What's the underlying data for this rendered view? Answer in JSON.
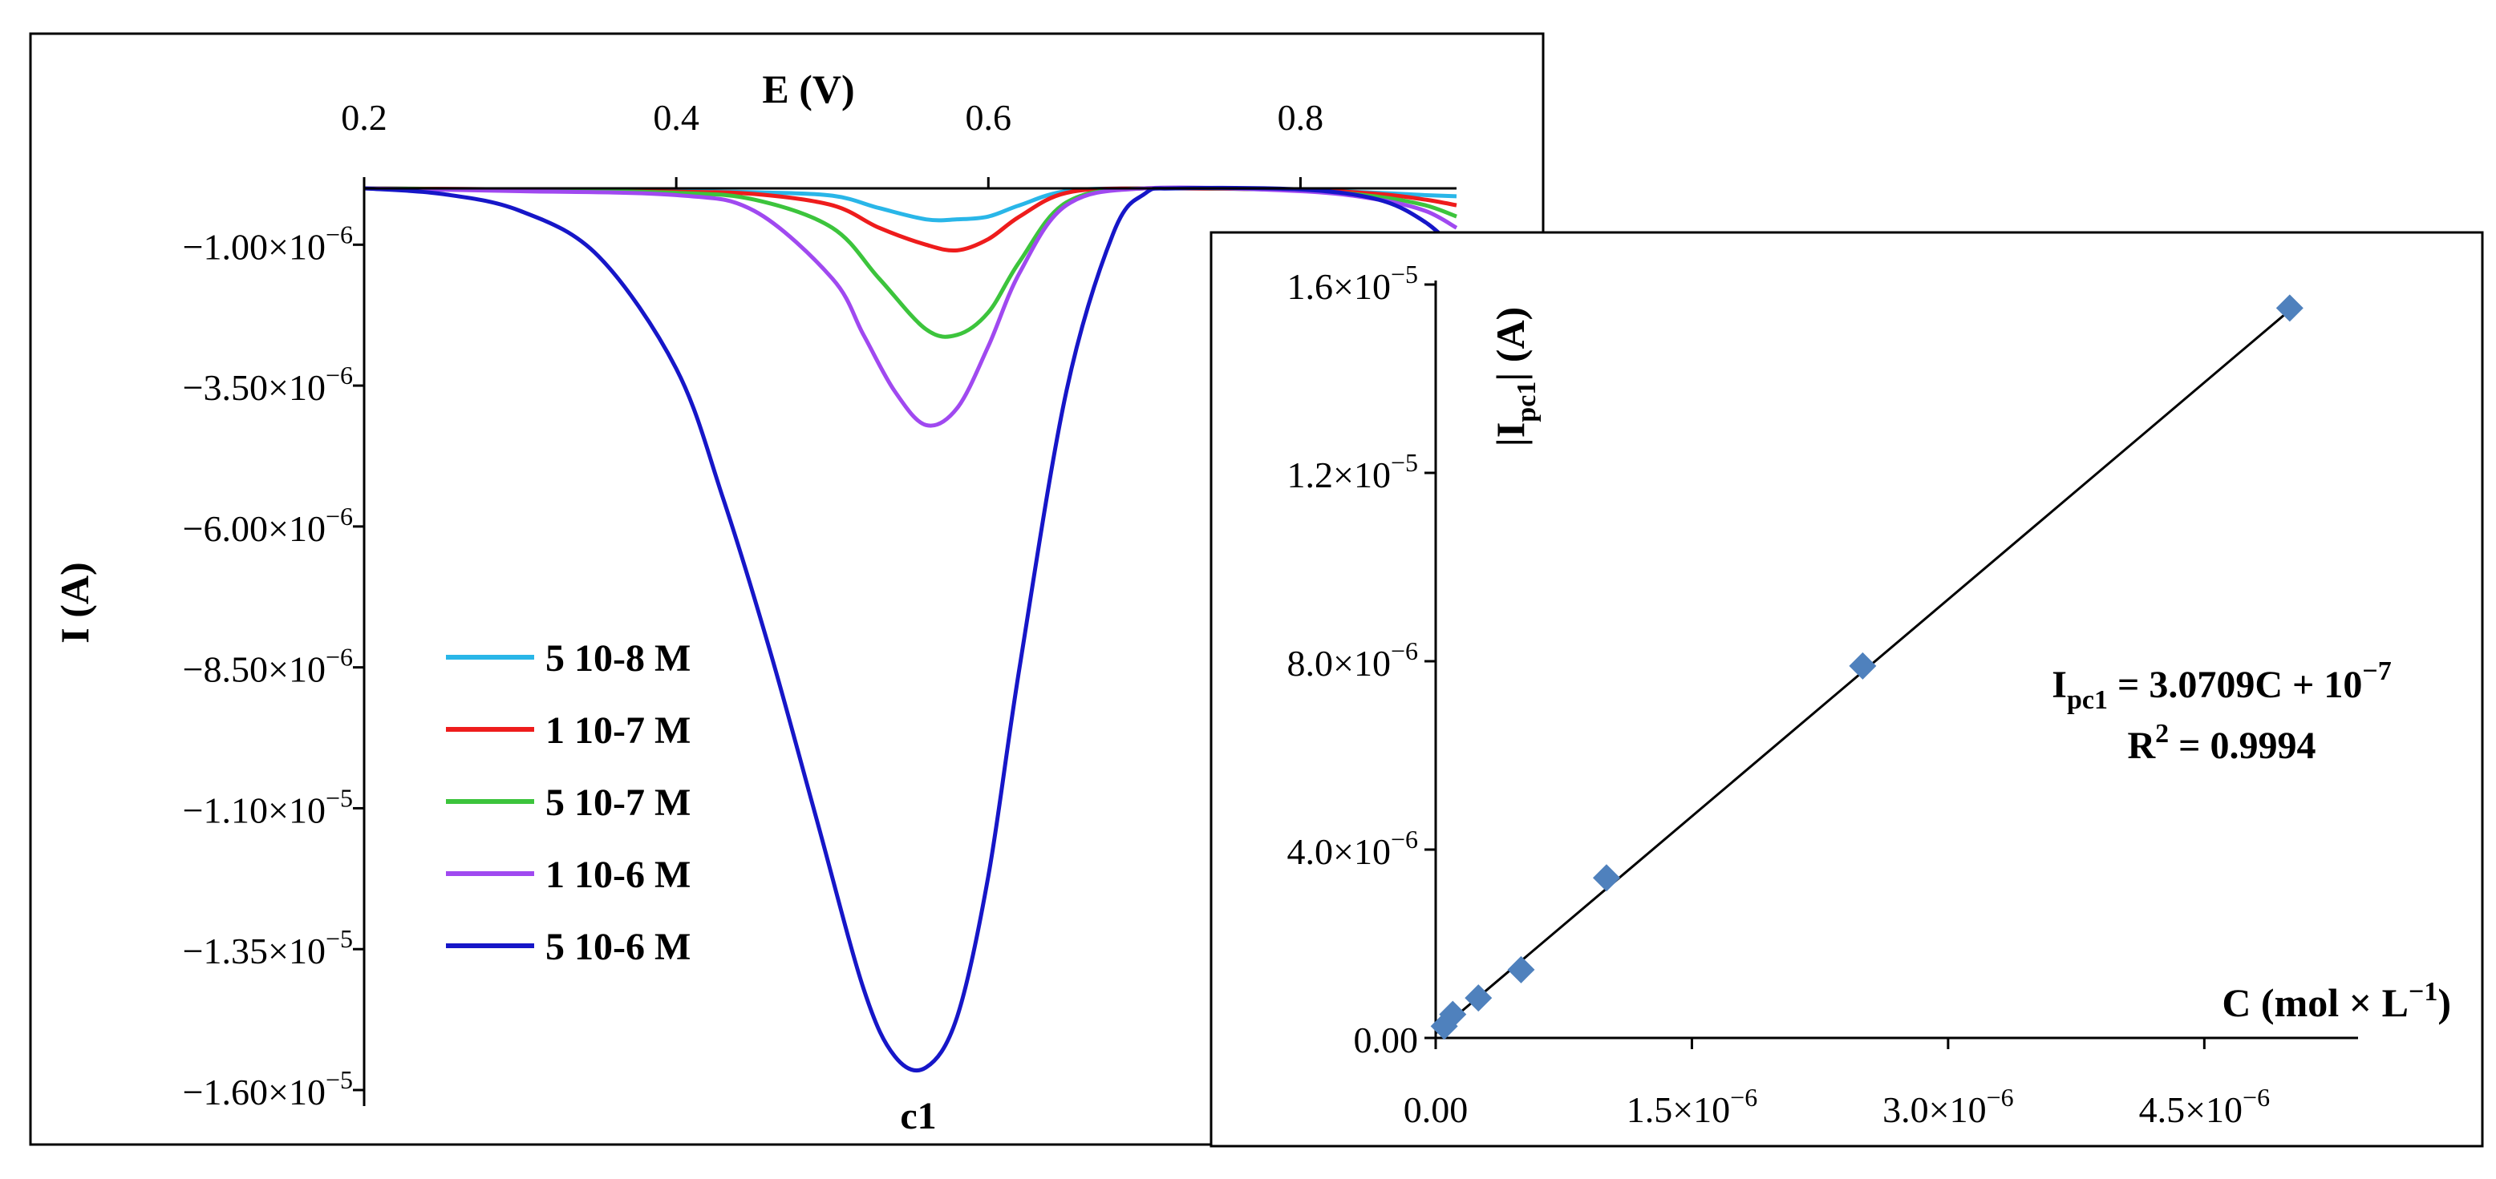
{
  "chart_data": [
    {
      "type": "line",
      "xlabel": "E (V)",
      "ylabel": "I (A)",
      "xlim": [
        0.2,
        0.9
      ],
      "ylim": [
        -1.6e-05,
        0
      ],
      "xticks": [
        {
          "value": 0.2,
          "label": "0.2"
        },
        {
          "value": 0.4,
          "label": "0.4"
        },
        {
          "value": 0.6,
          "label": "0.6"
        },
        {
          "value": 0.8,
          "label": "0.8"
        }
      ],
      "yticks": [
        {
          "value": -1e-06,
          "mant": "−1.00×10",
          "exp": "−6"
        },
        {
          "value": -3.5e-06,
          "mant": "−3.50×10",
          "exp": "−6"
        },
        {
          "value": -6e-06,
          "mant": "−6.00×10",
          "exp": "−6"
        },
        {
          "value": -8.5e-06,
          "mant": "−8.50×10",
          "exp": "−6"
        },
        {
          "value": -1.1e-05,
          "mant": "−1.10×10",
          "exp": "−5"
        },
        {
          "value": -1.35e-05,
          "mant": "−1.35×10",
          "exp": "−5"
        },
        {
          "value": -1.6e-05,
          "mant": "−1.60×10",
          "exp": "−5"
        }
      ],
      "peak_label": "c1",
      "series": [
        {
          "name": "5 10-8 M",
          "color": "#29b6e8",
          "x": [
            0.2,
            0.3,
            0.4,
            0.45,
            0.5,
            0.53,
            0.56,
            0.58,
            0.6,
            0.62,
            0.65,
            0.7,
            0.8,
            0.85,
            0.88,
            0.9
          ],
          "y": [
            0,
            -2e-08,
            -5e-08,
            -7e-08,
            -1.3e-07,
            -3.5e-07,
            -5.5e-07,
            -5.5e-07,
            -5e-07,
            -3e-07,
            -5e-08,
            0,
            -3e-08,
            -8e-08,
            -1.2e-07,
            -1.4e-07
          ]
        },
        {
          "name": "1 10-7 M",
          "color": "#ee1c1c",
          "x": [
            0.2,
            0.3,
            0.4,
            0.45,
            0.5,
            0.53,
            0.56,
            0.58,
            0.6,
            0.62,
            0.65,
            0.7,
            0.8,
            0.85,
            0.88,
            0.9
          ],
          "y": [
            0,
            -2e-08,
            -6e-08,
            -1e-07,
            -3e-07,
            -7e-07,
            -1e-06,
            -1.1e-06,
            -9e-07,
            -5e-07,
            -8e-08,
            0,
            -3e-08,
            -1e-07,
            -2e-07,
            -3e-07
          ]
        },
        {
          "name": "5 10-7 M",
          "color": "#3cc43c",
          "x": [
            0.2,
            0.3,
            0.4,
            0.45,
            0.5,
            0.53,
            0.56,
            0.58,
            0.6,
            0.62,
            0.65,
            0.7,
            0.8,
            0.85,
            0.88,
            0.9
          ],
          "y": [
            0,
            -3e-08,
            -8e-08,
            -2e-07,
            -7e-07,
            -1.6e-06,
            -2.5e-06,
            -2.6e-06,
            -2.2e-06,
            -1.3e-06,
            -2.5e-07,
            0,
            -4e-08,
            -1.5e-07,
            -3e-07,
            -5e-07
          ]
        },
        {
          "name": "1 10-6 M",
          "color": "#a049f0",
          "x": [
            0.2,
            0.3,
            0.4,
            0.45,
            0.5,
            0.52,
            0.54,
            0.56,
            0.58,
            0.6,
            0.62,
            0.65,
            0.7,
            0.8,
            0.85,
            0.88,
            0.9
          ],
          "y": [
            0,
            -5e-08,
            -1.2e-07,
            -4e-07,
            -1.6e-06,
            -2.6e-06,
            -3.6e-06,
            -4.2e-06,
            -3.9e-06,
            -2.8e-06,
            -1.5e-06,
            -3e-07,
            0,
            -5e-08,
            -2e-07,
            -4e-07,
            -7e-07
          ]
        },
        {
          "name": "5 10-6 M",
          "color": "#1616c8",
          "x": [
            0.2,
            0.25,
            0.3,
            0.35,
            0.4,
            0.43,
            0.46,
            0.49,
            0.52,
            0.54,
            0.56,
            0.58,
            0.6,
            0.62,
            0.65,
            0.68,
            0.7,
            0.72,
            0.8,
            0.85,
            0.88,
            0.9
          ],
          "y": [
            0,
            -1e-07,
            -4e-07,
            -1.2e-06,
            -3.2e-06,
            -5.5e-06,
            -8.2e-06,
            -1.12e-05,
            -1.42e-05,
            -1.54e-05,
            -1.56e-05,
            -1.47e-05,
            -1.22e-05,
            -8.5e-06,
            -3.6e-06,
            -8e-07,
            -1e-07,
            0,
            -2e-08,
            -2e-07,
            -6e-07,
            -1.1e-06
          ]
        }
      ]
    },
    {
      "type": "scatter",
      "xlabel": "C (mol × L",
      "xlabel_sup": "−1",
      "xlabel_tail": ")",
      "ylabel_pre": "|I",
      "ylabel_sub": "pc1",
      "ylabel_post": "| (A)",
      "xlim": [
        0,
        5.4e-06
      ],
      "ylim": [
        0,
        1.6e-05
      ],
      "xticks": [
        {
          "value": 0,
          "mant": "0.00",
          "exp": ""
        },
        {
          "value": 1.5e-06,
          "mant": "1.5×10",
          "exp": "−6"
        },
        {
          "value": 3e-06,
          "mant": "3.0×10",
          "exp": "−6"
        },
        {
          "value": 4.5e-06,
          "mant": "4.5×10",
          "exp": "−6"
        }
      ],
      "yticks": [
        {
          "value": 0,
          "mant": "0.00",
          "exp": ""
        },
        {
          "value": 4e-06,
          "mant": "4.0×10",
          "exp": "−6"
        },
        {
          "value": 8e-06,
          "mant": "8.0×10",
          "exp": "−6"
        },
        {
          "value": 1.2e-05,
          "mant": "1.2×10",
          "exp": "−5"
        },
        {
          "value": 1.6e-05,
          "mant": "1.6×10",
          "exp": "−5"
        }
      ],
      "points": {
        "x": [
          5e-08,
          1e-07,
          2.5e-07,
          5e-07,
          1e-06,
          2.5e-06,
          5e-06
        ],
        "y": [
          2.5e-07,
          5e-07,
          8.5e-07,
          1.45e-06,
          3.4e-06,
          7.9e-06,
          1.55e-05
        ]
      },
      "marker_color": "#4f81bd",
      "fit": {
        "slope": 3.0709,
        "intercept": 1e-07
      },
      "equation": {
        "I": "I",
        "sub": "pc1",
        "rhs": " = 3.0709C + 10",
        "exp": "−7",
        "r2_label": "R",
        "r2_sup": "2",
        "r2_rhs": " = 0.9994"
      }
    }
  ]
}
